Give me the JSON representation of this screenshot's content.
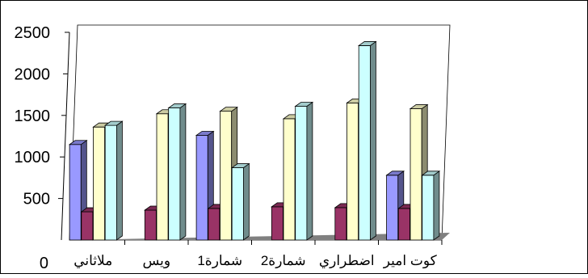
{
  "chart_data": {
    "type": "bar",
    "categories": [
      "ملاثاني",
      "ويس",
      "شمارة1",
      "شمارة2",
      "اضطراري",
      "كوت امير"
    ],
    "series": [
      {
        "color": "#9999ff",
        "values": [
          1150,
          0,
          1260,
          0,
          0,
          780
        ]
      },
      {
        "color": "#993366",
        "values": [
          340,
          360,
          380,
          400,
          390,
          380
        ]
      },
      {
        "color": "#ffffcc",
        "values": [
          1360,
          1520,
          1550,
          1460,
          1650,
          1580
        ]
      },
      {
        "color": "#ccffff",
        "values": [
          1380,
          1590,
          870,
          1610,
          2340,
          780
        ]
      }
    ],
    "yticks": [
      "0",
      "500",
      "1000",
      "1500",
      "2000",
      "2500"
    ],
    "ylim": [
      0,
      2500
    ],
    "grid": false,
    "legend": false,
    "view": "3d-clustered-column"
  }
}
